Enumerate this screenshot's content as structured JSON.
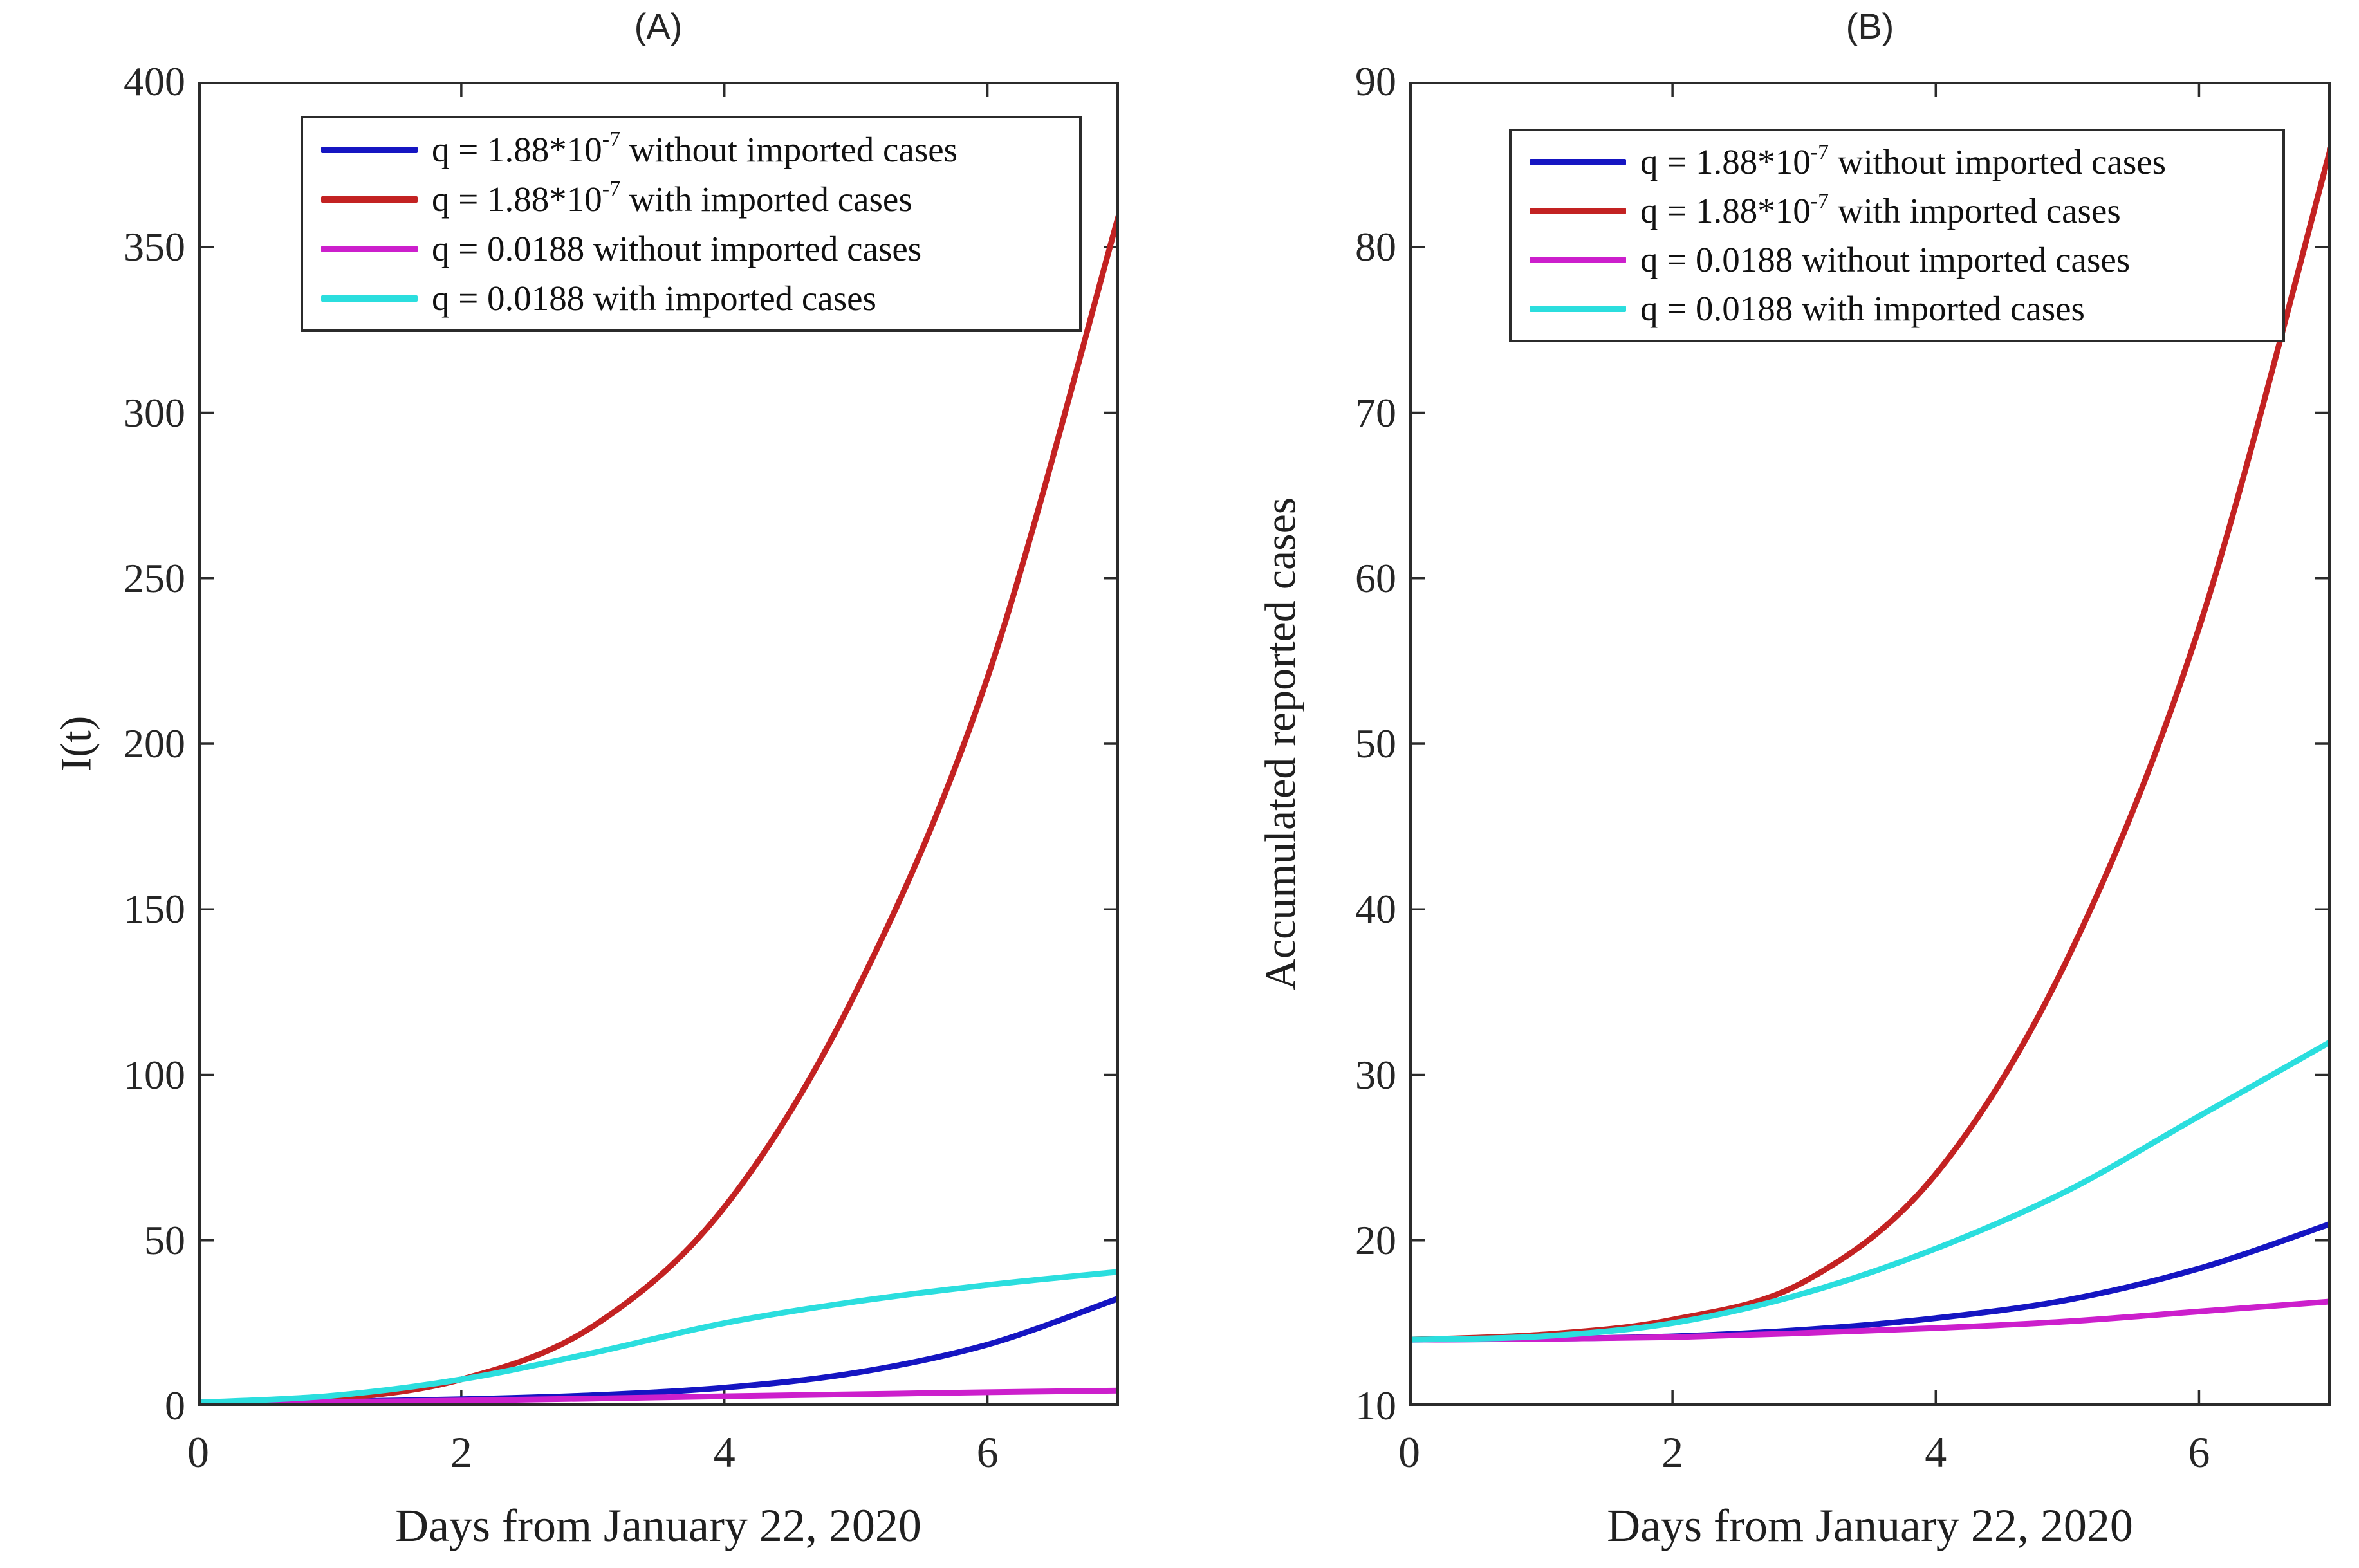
{
  "figure_caption": "",
  "colors": {
    "background": "#ffffff",
    "axis_frame": "#2b2b2b",
    "text": "#1f1f1f",
    "series_blue": "#1515C2",
    "series_red": "#C32222",
    "series_magenta": "#CC1FCC",
    "series_cyan": "#2BDEDE"
  },
  "chart_data": [
    {
      "type": "line",
      "panel": "A",
      "title": "(A)",
      "xlabel": "Days from January 22, 2020",
      "ylabel": "I(t)",
      "xlim": [
        0,
        7
      ],
      "ylim": [
        0,
        400
      ],
      "xticks": [
        0,
        2,
        4,
        6
      ],
      "yticks": [
        0,
        50,
        100,
        150,
        200,
        250,
        300,
        350,
        400
      ],
      "grid": false,
      "legend_position": "upper-left",
      "x": [
        0,
        1,
        2,
        3,
        4,
        5,
        6,
        7
      ],
      "series": [
        {
          "name": "q = 1.88*10^-7 without imported cases",
          "color": "#1515C2",
          "values": [
            1,
            1.3,
            2,
            3.2,
            5.5,
            10,
            18.5,
            32.5
          ],
          "legend": {
            "pre": "q = 1.88*10",
            "sup": "-7",
            "post": " without imported cases"
          }
        },
        {
          "name": "q = 1.88*10^-7 with imported cases",
          "color": "#C32222",
          "values": [
            1,
            2,
            8,
            24,
            60,
            125,
            220,
            360
          ],
          "legend": {
            "pre": "q = 1.88*10",
            "sup": "-7",
            "post": " with imported cases"
          }
        },
        {
          "name": "q = 0.0188 without imported cases",
          "color": "#CC1FCC",
          "values": [
            1,
            1.2,
            1.6,
            2.2,
            2.9,
            3.5,
            4.1,
            4.6
          ],
          "legend": {
            "pre": "q = 0.0188 without imported cases",
            "sup": "",
            "post": ""
          }
        },
        {
          "name": "q = 0.0188 with imported cases",
          "color": "#2BDEDE",
          "values": [
            1,
            3,
            8,
            16,
            25,
            31.5,
            36.5,
            40.5
          ],
          "legend": {
            "pre": "q = 0.0188 with imported cases",
            "sup": "",
            "post": ""
          }
        }
      ]
    },
    {
      "type": "line",
      "panel": "B",
      "title": "(B)",
      "xlabel": "Days from January 22, 2020",
      "ylabel": "Accumulated reported cases",
      "xlim": [
        0,
        7
      ],
      "ylim": [
        10,
        90
      ],
      "xticks": [
        0,
        2,
        4,
        6
      ],
      "yticks": [
        10,
        20,
        30,
        40,
        50,
        60,
        70,
        80,
        90
      ],
      "grid": false,
      "legend_position": "upper-left",
      "x": [
        0,
        1,
        2,
        3,
        4,
        5,
        6,
        7
      ],
      "series": [
        {
          "name": "q = 1.88*10^-7 without imported cases",
          "color": "#1515C2",
          "values": [
            14,
            14.05,
            14.2,
            14.6,
            15.3,
            16.4,
            18.3,
            21
          ],
          "legend": {
            "pre": "q = 1.88*10",
            "sup": "-7",
            "post": " without imported cases"
          }
        },
        {
          "name": "q = 1.88*10^-7 with imported cases",
          "color": "#C32222",
          "values": [
            14,
            14.3,
            15.2,
            17.5,
            24,
            37,
            57,
            86
          ],
          "legend": {
            "pre": "q = 1.88*10",
            "sup": "-7",
            "post": " with imported cases"
          }
        },
        {
          "name": "q = 0.0188 without imported cases",
          "color": "#CC1FCC",
          "values": [
            14,
            14.05,
            14.15,
            14.4,
            14.7,
            15.1,
            15.7,
            16.3
          ],
          "legend": {
            "pre": "q = 0.0188 without imported cases",
            "sup": "",
            "post": ""
          }
        },
        {
          "name": "q = 0.0188 with imported cases",
          "color": "#2BDEDE",
          "values": [
            14,
            14.2,
            15,
            16.8,
            19.5,
            23,
            27.5,
            32
          ],
          "legend": {
            "pre": "q = 0.0188 with imported cases",
            "sup": "",
            "post": ""
          }
        }
      ]
    }
  ],
  "layout_note_values": {
    "panel_a_title": "(A)",
    "panel_b_title": "(B)"
  }
}
